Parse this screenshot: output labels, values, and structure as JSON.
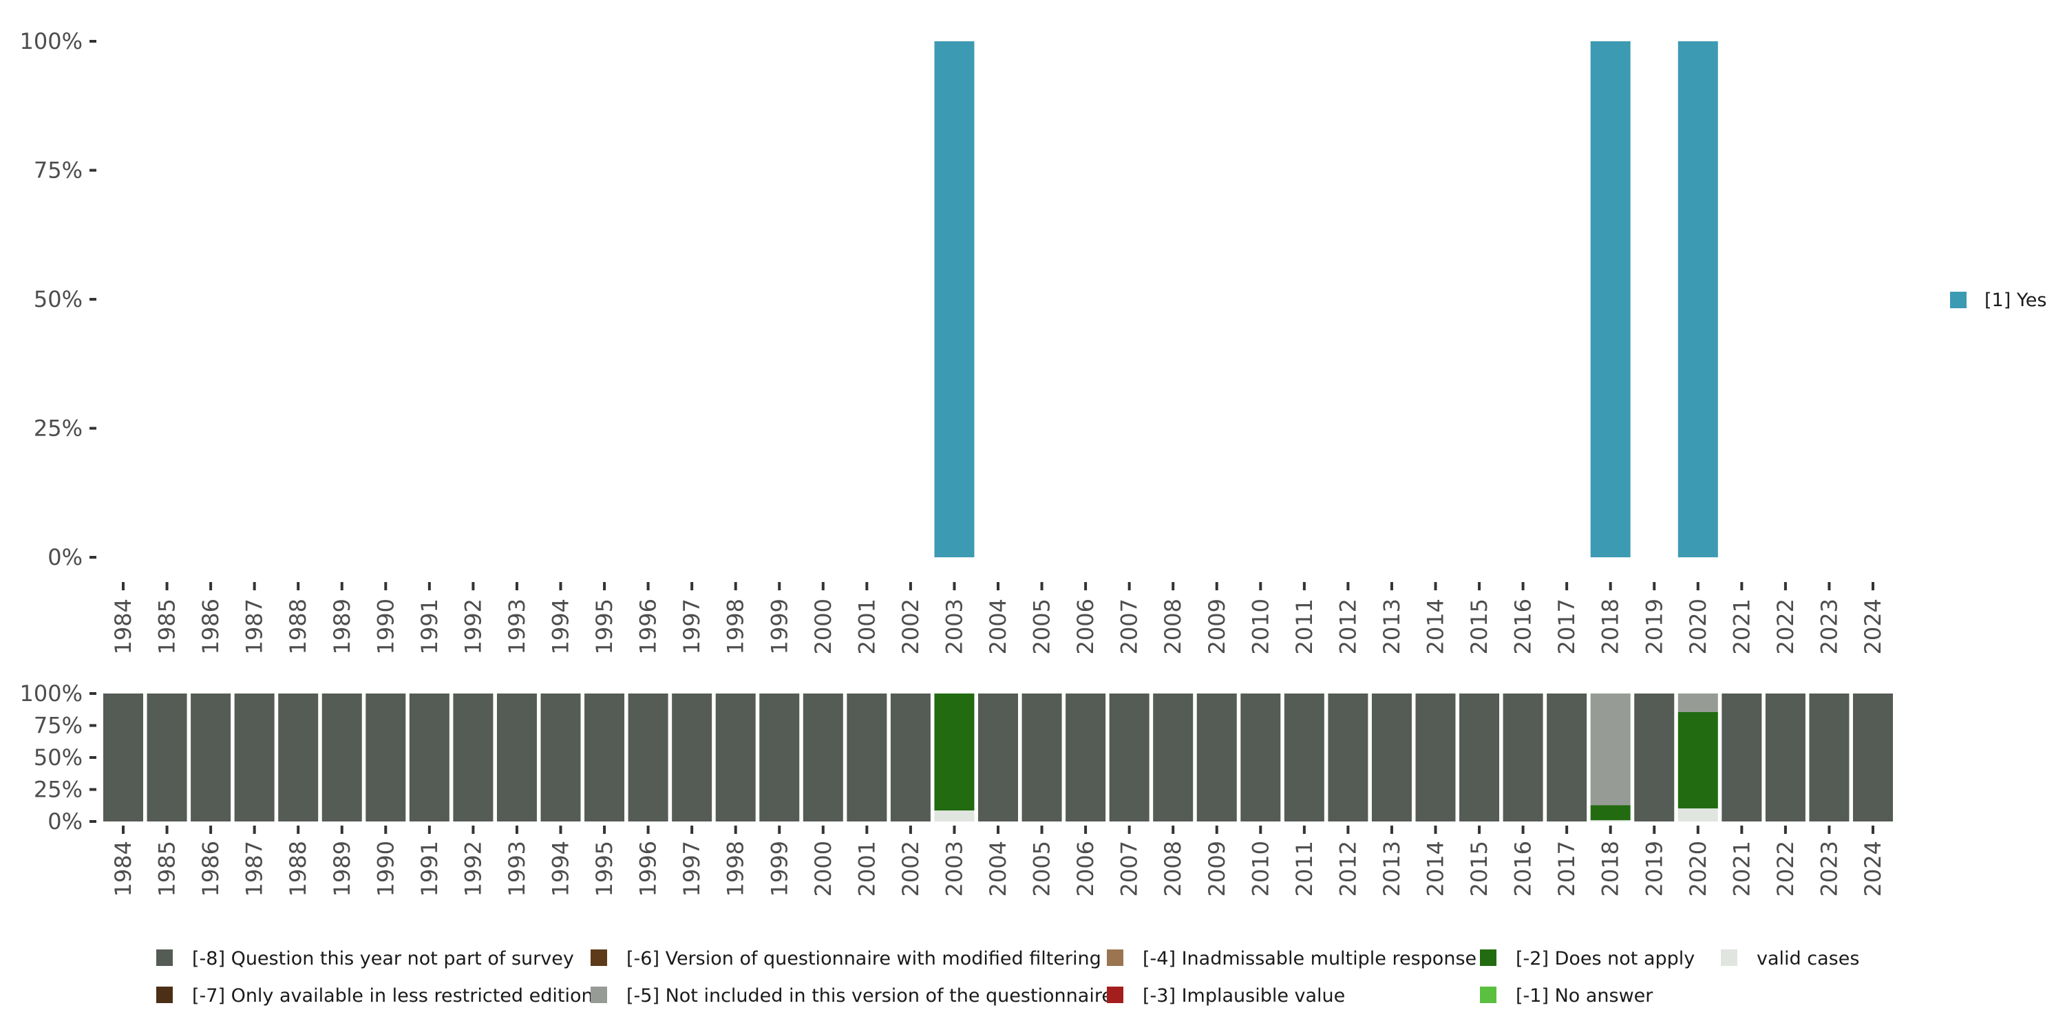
{
  "chart_data": [
    {
      "type": "bar",
      "title": "",
      "xlabel": "",
      "ylabel": "",
      "ylim": [
        0,
        100
      ],
      "yticks": [
        "0%",
        "25%",
        "50%",
        "75%",
        "100%"
      ],
      "categories": [
        "1984",
        "1985",
        "1986",
        "1987",
        "1988",
        "1989",
        "1990",
        "1991",
        "1992",
        "1993",
        "1994",
        "1995",
        "1996",
        "1997",
        "1998",
        "1999",
        "2000",
        "2001",
        "2002",
        "2003",
        "2004",
        "2005",
        "2006",
        "2007",
        "2008",
        "2009",
        "2010",
        "2011",
        "2012",
        "2013",
        "2014",
        "2015",
        "2016",
        "2017",
        "2018",
        "2019",
        "2020",
        "2021",
        "2022",
        "2023",
        "2024"
      ],
      "series": [
        {
          "name": "[1] Yes",
          "color": "#3d9ab3",
          "values": {
            "2003": 100,
            "2018": 100,
            "2020": 100
          }
        }
      ],
      "legend_position": "right"
    },
    {
      "type": "bar",
      "stacked": true,
      "ylim": [
        0,
        100
      ],
      "yticks": [
        "0%",
        "25%",
        "50%",
        "75%",
        "100%"
      ],
      "categories": [
        "1984",
        "1985",
        "1986",
        "1987",
        "1988",
        "1989",
        "1990",
        "1991",
        "1992",
        "1993",
        "1994",
        "1995",
        "1996",
        "1997",
        "1998",
        "1999",
        "2000",
        "2001",
        "2002",
        "2003",
        "2004",
        "2005",
        "2006",
        "2007",
        "2008",
        "2009",
        "2010",
        "2011",
        "2012",
        "2013",
        "2014",
        "2015",
        "2016",
        "2017",
        "2018",
        "2019",
        "2020",
        "2021",
        "2022",
        "2023",
        "2024"
      ],
      "legend": [
        {
          "label": "[-8] Question this year not part of survey",
          "color": "#555b55"
        },
        {
          "label": "[-7] Only available in less restricted edition",
          "color": "#4b2f17"
        },
        {
          "label": "[-6] Version of questionnaire with modified filtering",
          "color": "#5c3a1a"
        },
        {
          "label": "[-5] Not included in this version of the questionnaire",
          "color": "#979b95"
        },
        {
          "label": "[-4] Inadmissable multiple response",
          "color": "#9a7550"
        },
        {
          "label": "[-3] Implausible value",
          "color": "#a51e1e"
        },
        {
          "label": "[-2] Does not apply",
          "color": "#226b11"
        },
        {
          "label": "[-1] No answer",
          "color": "#5bbf3f"
        },
        {
          "label": "valid cases",
          "color": "#e0e5df"
        }
      ],
      "legend_position": "bottom",
      "special": {
        "2003": {
          "valid cases": 8.6,
          "[-2] Does not apply": 91.4
        },
        "2018": {
          "valid cases": 1,
          "[-2] Does not apply": 11.8,
          "[-5] Not included in this version of the questionnaire": 87.2
        },
        "2020": {
          "valid cases": 10.2,
          "[-2] Does not apply": 75.4,
          "[-5] Not included in this version of the questionnaire": 14.4
        }
      },
      "default": {
        "[-8] Question this year not part of survey": 100
      }
    }
  ]
}
